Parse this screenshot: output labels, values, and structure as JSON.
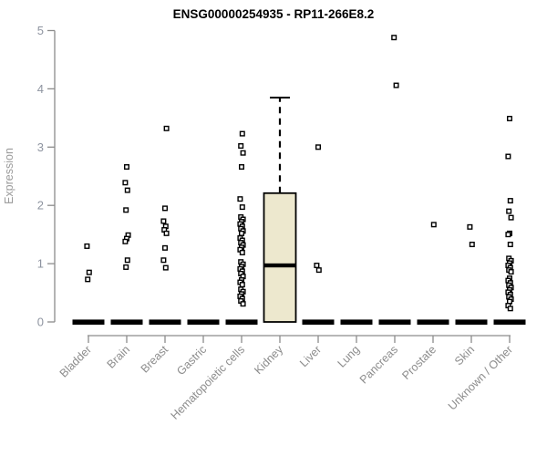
{
  "header": {
    "title": "ENSG00000254935 - RP11-266E8.2"
  },
  "chart_data": {
    "type": "boxplot",
    "title": "ENSG00000254935 - RP11-266E8.2",
    "xlabel": "",
    "ylabel": "Expression",
    "ylim": [
      0,
      5
    ],
    "yticks": [
      0,
      1,
      2,
      3,
      4,
      5
    ],
    "grid": false,
    "legend": "none",
    "point_marker": "open-square",
    "categories": [
      "Bladder",
      "Brain",
      "Breast",
      "Gastric",
      "Hematopoietic cells",
      "Kidney",
      "Liver",
      "Lung",
      "Pancreas",
      "Prostate",
      "Skin",
      "Unknown / Other"
    ],
    "series": [
      {
        "category": "Bladder",
        "box": {
          "collapsed": true,
          "q1": 0,
          "median": 0,
          "q3": 0,
          "whisker_low": 0,
          "whisker_high": 0
        },
        "points": [
          1.3,
          0.85,
          0.73
        ]
      },
      {
        "category": "Brain",
        "box": {
          "collapsed": true,
          "q1": 0,
          "median": 0,
          "q3": 0,
          "whisker_low": 0,
          "whisker_high": 0
        },
        "points": [
          2.66,
          2.39,
          2.26,
          1.92,
          1.49,
          1.43,
          1.38,
          1.06,
          0.94
        ]
      },
      {
        "category": "Breast",
        "box": {
          "collapsed": true,
          "q1": 0,
          "median": 0,
          "q3": 0,
          "whisker_low": 0,
          "whisker_high": 0
        },
        "points": [
          3.32,
          1.95,
          1.73,
          1.64,
          1.58,
          1.52,
          1.27,
          1.06,
          0.93
        ]
      },
      {
        "category": "Gastric",
        "box": {
          "collapsed": true,
          "q1": 0,
          "median": 0,
          "q3": 0,
          "whisker_low": 0,
          "whisker_high": 0
        },
        "points": []
      },
      {
        "category": "Hematopoietic cells",
        "box": {
          "collapsed": true,
          "q1": 0,
          "median": 0,
          "q3": 0,
          "whisker_low": 0,
          "whisker_high": 0
        },
        "points": [
          3.23,
          3.02,
          2.9,
          2.66,
          2.11,
          1.97,
          1.8,
          1.76,
          1.72,
          1.68,
          1.64,
          1.6,
          1.56,
          1.52,
          1.44,
          1.4,
          1.36,
          1.32,
          1.28,
          1.24,
          1.19,
          1.03,
          0.99,
          0.95,
          0.91,
          0.87,
          0.83,
          0.78,
          0.72,
          0.68,
          0.64,
          0.56,
          0.52,
          0.48,
          0.44,
          0.4,
          0.36,
          0.31
        ]
      },
      {
        "category": "Kidney",
        "box": {
          "collapsed": false,
          "q1": 0,
          "median": 0.97,
          "q3": 2.21,
          "whisker_low": 0,
          "whisker_high": 3.85
        },
        "points": []
      },
      {
        "category": "Liver",
        "box": {
          "collapsed": true,
          "q1": 0,
          "median": 0,
          "q3": 0,
          "whisker_low": 0,
          "whisker_high": 0
        },
        "points": [
          3.0,
          0.97,
          0.89
        ]
      },
      {
        "category": "Lung",
        "box": {
          "collapsed": true,
          "q1": 0,
          "median": 0,
          "q3": 0,
          "whisker_low": 0,
          "whisker_high": 0
        },
        "points": []
      },
      {
        "category": "Pancreas",
        "box": {
          "collapsed": true,
          "q1": 0,
          "median": 0,
          "q3": 0,
          "whisker_low": 0,
          "whisker_high": 0
        },
        "points": [
          4.88,
          4.06
        ]
      },
      {
        "category": "Prostate",
        "box": {
          "collapsed": true,
          "q1": 0,
          "median": 0,
          "q3": 0,
          "whisker_low": 0,
          "whisker_high": 0
        },
        "points": [
          1.67
        ]
      },
      {
        "category": "Skin",
        "box": {
          "collapsed": true,
          "q1": 0,
          "median": 0,
          "q3": 0,
          "whisker_low": 0,
          "whisker_high": 0
        },
        "points": [
          1.63,
          1.33
        ]
      },
      {
        "category": "Unknown / Other",
        "box": {
          "collapsed": true,
          "q1": 0,
          "median": 0,
          "q3": 0,
          "whisker_low": 0,
          "whisker_high": 0
        },
        "points": [
          3.49,
          2.84,
          2.08,
          1.9,
          1.79,
          1.52,
          1.5,
          1.33,
          1.09,
          1.05,
          1.01,
          0.97,
          0.93,
          0.89,
          0.86,
          0.75,
          0.71,
          0.67,
          0.63,
          0.59,
          0.55,
          0.51,
          0.47,
          0.43,
          0.39,
          0.35,
          0.28,
          0.23
        ]
      }
    ],
    "colors": {
      "box_fill": "#EDE8CE",
      "box_border": "#000000",
      "median": "#000000",
      "point_stroke": "#000000",
      "point_fill": "#FFFFFF",
      "zero_bar": "#000000",
      "axis": "#8c8c8c",
      "title": "#000000"
    }
  }
}
